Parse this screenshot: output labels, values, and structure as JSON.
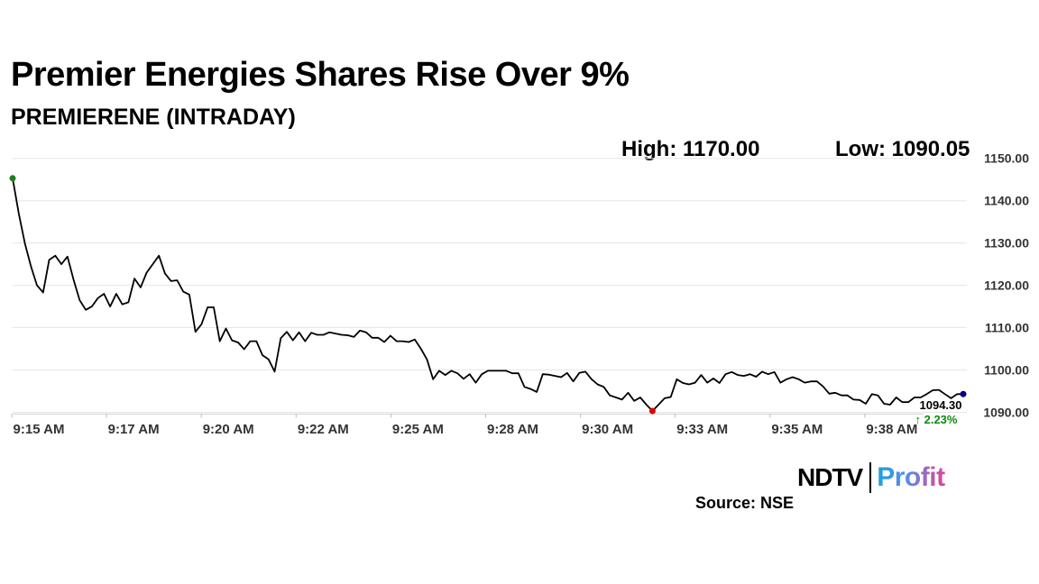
{
  "header": {
    "title": "Premier Energies Shares Rise Over 9%",
    "subtitle": "PREMIERENE (INTRADAY)"
  },
  "stats": {
    "high": "High: 1170.00",
    "low": "Low: 1090.05"
  },
  "brand": {
    "ndtv": "NDTV",
    "profit": "Profit"
  },
  "source": "Source: NSE",
  "colors": {
    "line": "#000000",
    "start_marker": "#1a7f1a",
    "low_marker": "#e00000",
    "end_marker": "#00008b",
    "change_up": "#0a8a0a",
    "grid": "#e6e6e6"
  },
  "chart_data": {
    "type": "line",
    "title": "PREMIERENE (INTRADAY)",
    "xlabel": "",
    "ylabel": "",
    "ylim": [
      1089,
      1151
    ],
    "yticks": [
      1090,
      1100,
      1110,
      1120,
      1130,
      1140,
      1150
    ],
    "ytick_labels": [
      "1090.00",
      "1100.00",
      "1110.00",
      "1120.00",
      "1130.00",
      "1140.00",
      "1150.00"
    ],
    "xticks": [
      "9:15 AM",
      "9:17 AM",
      "9:20 AM",
      "9:22 AM",
      "9:25 AM",
      "9:28 AM",
      "9:30 AM",
      "9:33 AM",
      "9:35 AM",
      "9:38 AM"
    ],
    "grid": "horizontal",
    "series": [
      {
        "values": [
          1145.3,
          1137,
          1130,
          1124.5,
          1120,
          1118.3,
          1126,
          1127,
          1125,
          1126.8,
          1121.3,
          1116.5,
          1114.2,
          1115,
          1117,
          1118,
          1115,
          1118,
          1115.5,
          1116,
          1121.6,
          1119.5,
          1123,
          1125,
          1127,
          1122.8,
          1121,
          1121.2,
          1118.5,
          1117.8,
          1109,
          1110.8,
          1114.8,
          1114.8,
          1106.8,
          1109.8,
          1107,
          1106.5,
          1104.9,
          1106.8,
          1106.8,
          1103.5,
          1102.5,
          1099.6,
          1107.5,
          1109,
          1107,
          1108.9,
          1106.8,
          1108.8,
          1108.3,
          1108.3,
          1108.9,
          1108.6,
          1108.3,
          1108.2,
          1107.8,
          1109.3,
          1108.9,
          1107.6,
          1107.6,
          1106.6,
          1108.1,
          1106.8,
          1106.8,
          1106.6,
          1107.2,
          1105,
          1102.5,
          1097.8,
          1099.8,
          1098.8,
          1099.8,
          1099.2,
          1097.9,
          1099,
          1097,
          1099,
          1099.8,
          1099.8,
          1099.8,
          1099.8,
          1099.2,
          1099.2,
          1096,
          1095.5,
          1094.8,
          1099,
          1098.9,
          1098.6,
          1098.3,
          1099.3,
          1097.3,
          1099.3,
          1099.6,
          1097.8,
          1096.6,
          1096,
          1094,
          1093.5,
          1093,
          1094.6,
          1092.7,
          1093.5,
          1091.8,
          1090.3,
          1091.8,
          1093.3,
          1093.6,
          1097.8,
          1096.9,
          1096.6,
          1097,
          1098.8,
          1097,
          1098,
          1096.9,
          1099,
          1099.5,
          1098.8,
          1098.6,
          1099,
          1098.4,
          1099.6,
          1099,
          1099.5,
          1097,
          1097.8,
          1098.3,
          1097.8,
          1097,
          1097.3,
          1097.3,
          1096.1,
          1094.4,
          1094.6,
          1094,
          1094,
          1093,
          1092.9,
          1092,
          1094.3,
          1094,
          1092,
          1091.8,
          1093.5,
          1092.4,
          1092.4,
          1093.5,
          1093.5,
          1094.3,
          1095.2,
          1095.3,
          1094.3,
          1093.3,
          1094.3,
          1094.3
        ]
      }
    ],
    "markers": {
      "start": 1145.3,
      "low": 1090.3,
      "end": 1094.3
    },
    "annotations": {
      "last_price": "1094.30",
      "change": "↑ 2.23%"
    }
  }
}
